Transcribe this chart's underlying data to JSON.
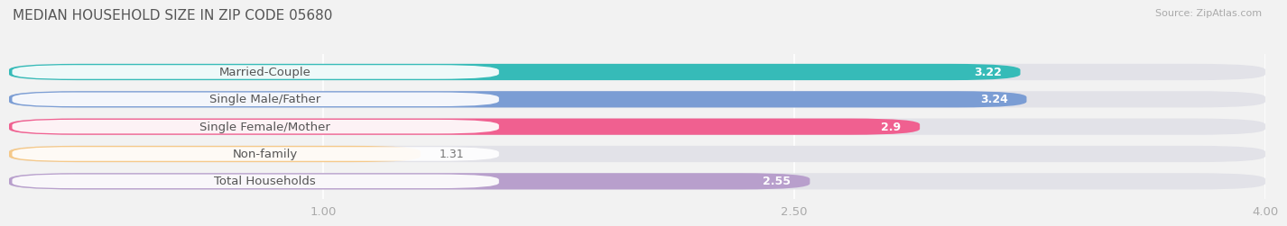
{
  "title": "MEDIAN HOUSEHOLD SIZE IN ZIP CODE 05680",
  "source": "Source: ZipAtlas.com",
  "categories": [
    "Married-Couple",
    "Single Male/Father",
    "Single Female/Mother",
    "Non-family",
    "Total Households"
  ],
  "values": [
    3.22,
    3.24,
    2.9,
    1.31,
    2.55
  ],
  "bar_colors": [
    "#36bbb8",
    "#7b9dd4",
    "#f06090",
    "#f5c98a",
    "#b89fcc"
  ],
  "value_colors": [
    "white",
    "white",
    "white",
    "#888888",
    "#888888"
  ],
  "xlim_min": 0.0,
  "xlim_max": 4.0,
  "xticks": [
    1.0,
    2.5,
    4.0
  ],
  "xtick_labels": [
    "1.00",
    "2.50",
    "4.00"
  ],
  "bar_height": 0.6,
  "label_fontsize": 9.5,
  "value_fontsize": 9.0,
  "title_fontsize": 11,
  "source_fontsize": 8,
  "background_color": "#f2f2f2",
  "bar_bg_color": "#e2e2e8",
  "label_pill_color": "#ffffff",
  "label_text_color": "#555555",
  "grid_color": "#ffffff",
  "tick_color": "#aaaaaa"
}
